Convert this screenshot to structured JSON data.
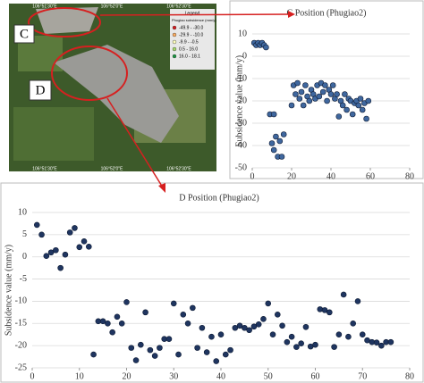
{
  "map": {
    "label_c": "C",
    "label_d": "D",
    "legend_title": "Legend",
    "legend_subtitle": "Phugiao subsidence (mm/y)",
    "legend_items": [
      "-49.9 - -30.0",
      "-29.9 - -10.0",
      "-9.9 - -0.5",
      "0.5 - 16.0",
      "16.0 - 18.1"
    ],
    "top_coords": [
      "106°51'30\"E",
      "106°52'0\"E",
      "106°52'30\"E"
    ],
    "bottom_coords": [
      "106°51'30\"E",
      "106°52'0\"E",
      "106°52'30\"E"
    ]
  },
  "chart_data": [
    {
      "type": "scatter",
      "title": "C Position (Phugiao2)",
      "y_label": "Subsidence value (mm/y)",
      "x": [
        1,
        2,
        3,
        4,
        5,
        6,
        7,
        9,
        11,
        10,
        11,
        12,
        13,
        14,
        15,
        16,
        20,
        21,
        22,
        23,
        24,
        25,
        26,
        27,
        28,
        29,
        30,
        31,
        32,
        33,
        34,
        35,
        36,
        37,
        38,
        39,
        40,
        41,
        42,
        43,
        44,
        45,
        46,
        47,
        48,
        49,
        50,
        51,
        52,
        53,
        54,
        55,
        56,
        57,
        58,
        59
      ],
      "values": [
        6,
        5,
        6,
        5,
        6,
        5,
        4,
        -26,
        -26,
        -39,
        -42,
        -36,
        -45,
        -38,
        -45,
        -35,
        -22,
        -13,
        -17,
        -12,
        -19,
        -16,
        -22,
        -13,
        -18,
        -20,
        -15,
        -17,
        -19,
        -13,
        -18,
        -12,
        -16,
        -13,
        -20,
        -15,
        -17,
        -13,
        -19,
        -17,
        -27,
        -20,
        -22,
        -17,
        -24,
        -19,
        -20,
        -26,
        -21,
        -20,
        -22,
        -19,
        -24,
        -21,
        -28,
        -20
      ],
      "color": "#3f679e",
      "xlim": [
        0,
        80
      ],
      "ylim": [
        -50,
        10
      ],
      "xticks": [
        0,
        20,
        40,
        60,
        80
      ],
      "yticks": [
        -50,
        -40,
        -30,
        -20,
        -10,
        0,
        10
      ],
      "grid": true
    },
    {
      "type": "scatter",
      "title": "D Position (Phugiao2)",
      "y_label": "Subsidence value (mm/y)",
      "x": [
        1,
        2,
        3,
        4,
        5,
        6,
        7,
        8,
        9,
        10,
        11,
        12,
        13,
        14,
        15,
        16,
        17,
        18,
        19,
        20,
        21,
        22,
        23,
        24,
        25,
        26,
        27,
        28,
        29,
        30,
        31,
        32,
        33,
        34,
        35,
        36,
        37,
        38,
        39,
        40,
        41,
        42,
        43,
        44,
        45,
        46,
        47,
        48,
        49,
        50,
        51,
        52,
        53,
        54,
        55,
        56,
        57,
        58,
        59,
        60,
        61,
        62,
        63,
        64,
        65,
        66,
        67,
        68,
        69,
        70,
        71,
        72,
        73,
        74,
        75,
        76
      ],
      "values": [
        7.2,
        5,
        0.2,
        1,
        1.5,
        -2.5,
        0.5,
        5.5,
        6.5,
        2.2,
        3.5,
        2.3,
        -22,
        -14.5,
        -14.5,
        -15,
        -17,
        -13.5,
        -15,
        -10.2,
        -20.5,
        -23.3,
        -19.8,
        -12.5,
        -21,
        -22.3,
        -20.5,
        -18.5,
        -18.5,
        -10.5,
        -22,
        -13,
        -15,
        -11.5,
        -20.5,
        -16,
        -21.5,
        -18,
        -23.5,
        -17.5,
        -22,
        -21,
        -16,
        -15.5,
        -16,
        -16.5,
        -15.7,
        -15.2,
        -14,
        -10.5,
        -17.5,
        -13,
        -15.5,
        -19.2,
        -18,
        -20.3,
        -19.5,
        -15.8,
        -20.2,
        -19.8,
        -11.8,
        -12,
        -12.5,
        -20.3,
        -17.5,
        -8.5,
        -18,
        -15,
        -10,
        -17.5,
        -18.8,
        -19.2,
        -19.3,
        -20,
        -19.2,
        -19.2
      ],
      "color": "#1f3560",
      "xlim": [
        0,
        80
      ],
      "ylim": [
        -25,
        10
      ],
      "xticks": [
        0,
        10,
        20,
        30,
        40,
        50,
        60,
        70,
        80
      ],
      "yticks": [
        -25,
        -20,
        -15,
        -10,
        -5,
        0,
        5,
        10
      ],
      "grid": true
    }
  ]
}
